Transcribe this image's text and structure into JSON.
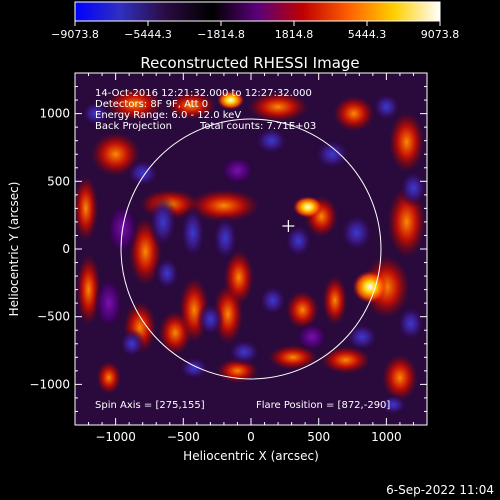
{
  "colorbar": {
    "ticks": [
      "-9073.8",
      "-5444.3",
      "-1814.8",
      "1814.8",
      "5444.3",
      "9073.8"
    ],
    "stops": [
      "#0000ff",
      "#3030c0",
      "#2a0a40",
      "#000000",
      "#5a007a",
      "#c00000",
      "#ff6000",
      "#ffd000",
      "#ffffff"
    ]
  },
  "chart_data": {
    "type": "heatmap",
    "title": "Reconstructed RHESSI Image",
    "xlabel": "Heliocentric X (arcsec)",
    "ylabel": "Heliocentric Y (arcsec)",
    "xlim": [
      -1300,
      1300
    ],
    "ylim": [
      -1300,
      1300
    ],
    "xticks": [
      -1000,
      -500,
      0,
      500,
      1000
    ],
    "yticks": [
      -1000,
      -500,
      0,
      500,
      1000
    ],
    "xtick_labels": [
      "-1000",
      "-500",
      "0",
      "500",
      "1000"
    ],
    "ytick_labels": [
      "-1000",
      "-500",
      "0",
      "500",
      "1000"
    ],
    "solar_disk_radius": 960,
    "crosshair": [
      276,
      170
    ],
    "flare_source": [
      872,
      -290
    ],
    "annotations": {
      "time": "14-Oct-2016 12:21:32.000 to 12:27:32.000",
      "detectors": "Detectors: 8F 9F, Att 0",
      "energy": "Energy Range: 6.0 - 12.0 keV",
      "method": "Back Projection",
      "counts": "Total counts: 7.71E+03",
      "spin_axis": "Spin Axis = [275,155]",
      "flare_position": "Flare Position = [872,-290]"
    }
  },
  "footer": {
    "date": "6-Sep-2022 11:04"
  }
}
